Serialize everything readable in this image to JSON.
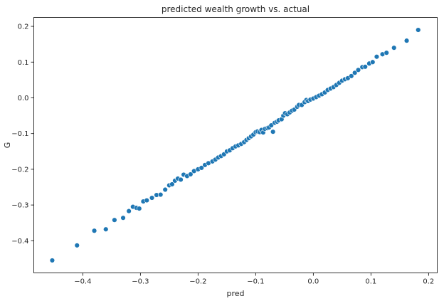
{
  "chart_data": {
    "type": "scatter",
    "title": "predicted wealth growth vs. actual",
    "xlabel": "pred",
    "ylabel": "G",
    "xlim": [
      -0.485,
      0.215
    ],
    "ylim": [
      -0.49,
      0.225
    ],
    "xticks": [
      -0.4,
      -0.3,
      -0.2,
      -0.1,
      0.0,
      0.1,
      0.2
    ],
    "xtick_labels": [
      "−0.4",
      "−0.3",
      "−0.2",
      "−0.1",
      "0.0",
      "0.1",
      "0.2"
    ],
    "yticks": [
      -0.4,
      -0.3,
      -0.2,
      -0.1,
      0.0,
      0.1,
      0.2
    ],
    "ytick_labels": [
      "−0.4",
      "−0.3",
      "−0.2",
      "−0.1",
      "0.0",
      "0.1",
      "0.2"
    ],
    "grid": false,
    "marker_color": "#1f77b4",
    "points": [
      [
        -0.453,
        -0.455
      ],
      [
        -0.41,
        -0.413
      ],
      [
        -0.38,
        -0.372
      ],
      [
        -0.36,
        -0.368
      ],
      [
        -0.345,
        -0.342
      ],
      [
        -0.33,
        -0.336
      ],
      [
        -0.32,
        -0.317
      ],
      [
        -0.313,
        -0.305
      ],
      [
        -0.307,
        -0.308
      ],
      [
        -0.302,
        -0.31
      ],
      [
        -0.295,
        -0.29
      ],
      [
        -0.289,
        -0.287
      ],
      [
        -0.28,
        -0.28
      ],
      [
        -0.272,
        -0.272
      ],
      [
        -0.265,
        -0.271
      ],
      [
        -0.257,
        -0.257
      ],
      [
        -0.25,
        -0.245
      ],
      [
        -0.245,
        -0.242
      ],
      [
        -0.24,
        -0.232
      ],
      [
        -0.235,
        -0.226
      ],
      [
        -0.23,
        -0.229
      ],
      [
        -0.225,
        -0.215
      ],
      [
        -0.219,
        -0.219
      ],
      [
        -0.213,
        -0.214
      ],
      [
        -0.207,
        -0.205
      ],
      [
        -0.2,
        -0.2
      ],
      [
        -0.194,
        -0.196
      ],
      [
        -0.188,
        -0.188
      ],
      [
        -0.182,
        -0.183
      ],
      [
        -0.175,
        -0.178
      ],
      [
        -0.17,
        -0.173
      ],
      [
        -0.165,
        -0.167
      ],
      [
        -0.16,
        -0.163
      ],
      [
        -0.155,
        -0.158
      ],
      [
        -0.15,
        -0.15
      ],
      [
        -0.145,
        -0.147
      ],
      [
        -0.14,
        -0.141
      ],
      [
        -0.135,
        -0.136
      ],
      [
        -0.13,
        -0.133
      ],
      [
        -0.125,
        -0.129
      ],
      [
        -0.12,
        -0.124
      ],
      [
        -0.116,
        -0.118
      ],
      [
        -0.112,
        -0.113
      ],
      [
        -0.108,
        -0.108
      ],
      [
        -0.104,
        -0.103
      ],
      [
        -0.1,
        -0.096
      ],
      [
        -0.097,
        -0.094
      ],
      [
        -0.093,
        -0.096
      ],
      [
        -0.09,
        -0.09
      ],
      [
        -0.087,
        -0.097
      ],
      [
        -0.084,
        -0.087
      ],
      [
        -0.08,
        -0.085
      ],
      [
        -0.077,
        -0.083
      ],
      [
        -0.073,
        -0.077
      ],
      [
        -0.07,
        -0.095
      ],
      [
        -0.067,
        -0.07
      ],
      [
        -0.063,
        -0.067
      ],
      [
        -0.06,
        -0.063
      ],
      [
        -0.055,
        -0.06
      ],
      [
        -0.052,
        -0.05
      ],
      [
        -0.049,
        -0.043
      ],
      [
        -0.045,
        -0.046
      ],
      [
        -0.041,
        -0.041
      ],
      [
        -0.037,
        -0.036
      ],
      [
        -0.033,
        -0.033
      ],
      [
        -0.028,
        -0.025
      ],
      [
        -0.025,
        -0.02
      ],
      [
        -0.02,
        -0.02
      ],
      [
        -0.015,
        -0.012
      ],
      [
        -0.012,
        -0.006
      ],
      [
        -0.009,
        -0.009
      ],
      [
        -0.005,
        -0.005
      ],
      [
        0.0,
        -0.002
      ],
      [
        0.005,
        0.002
      ],
      [
        0.01,
        0.006
      ],
      [
        0.015,
        0.01
      ],
      [
        0.02,
        0.015
      ],
      [
        0.025,
        0.022
      ],
      [
        0.03,
        0.026
      ],
      [
        0.035,
        0.03
      ],
      [
        0.04,
        0.036
      ],
      [
        0.045,
        0.042
      ],
      [
        0.05,
        0.048
      ],
      [
        0.055,
        0.052
      ],
      [
        0.06,
        0.055
      ],
      [
        0.066,
        0.061
      ],
      [
        0.072,
        0.07
      ],
      [
        0.078,
        0.078
      ],
      [
        0.085,
        0.086
      ],
      [
        0.09,
        0.087
      ],
      [
        0.097,
        0.096
      ],
      [
        0.103,
        0.1
      ],
      [
        0.11,
        0.115
      ],
      [
        0.12,
        0.122
      ],
      [
        0.127,
        0.126
      ],
      [
        0.14,
        0.14
      ],
      [
        0.162,
        0.16
      ],
      [
        0.182,
        0.19
      ]
    ]
  }
}
